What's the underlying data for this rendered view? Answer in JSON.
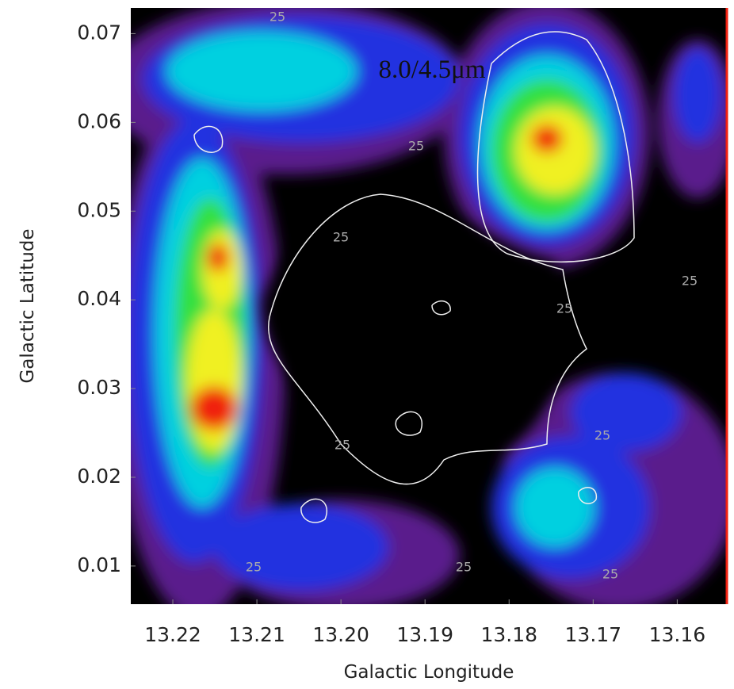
{
  "chart_data": {
    "type": "heatmap",
    "annotation": "8.0/4.5μm",
    "contour_label": "25",
    "xlabel": "Galactic Longitude",
    "ylabel": "Galactic Latitude",
    "xlim": [
      13.225,
      13.154
    ],
    "xticks": [
      13.22,
      13.21,
      {
        "value": 13.2,
        "label": "13.20"
      },
      13.19,
      13.18,
      13.17,
      13.16
    ],
    "ylim": [
      0.0057,
      0.0729
    ],
    "yticks": [
      0.01,
      0.02,
      0.03,
      0.04,
      0.05,
      0.06,
      0.07
    ]
  }
}
